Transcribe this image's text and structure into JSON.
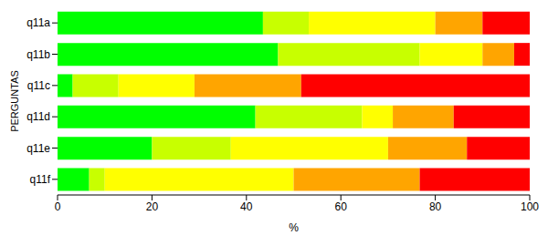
{
  "chart_data": {
    "type": "bar",
    "orientation": "horizontal",
    "stacked": true,
    "grid": false,
    "x_label": "%",
    "y_label": "PERGUNTAS",
    "categories": [
      "q11a",
      "q11b",
      "q11c",
      "q11d",
      "q11e",
      "q11f"
    ],
    "xlim": [
      0,
      100
    ],
    "xticks": [
      0,
      20,
      40,
      60,
      80,
      100
    ],
    "series": [
      {
        "color": "#00FF00",
        "values": [
          43.5,
          46.7,
          3.2,
          41.9,
          20,
          6.7
        ]
      },
      {
        "color": "#C8FF00",
        "values": [
          9.7,
          30,
          9.7,
          22.6,
          16.7,
          3.3
        ]
      },
      {
        "color": "#FFFF00",
        "values": [
          26.8,
          13.3,
          16.1,
          6.5,
          33.3,
          40
        ]
      },
      {
        "color": "#FFA500",
        "values": [
          10,
          6.7,
          22.6,
          12.9,
          16.7,
          26.7
        ]
      },
      {
        "color": "#FF0000",
        "values": [
          10,
          3.3,
          48.4,
          16.1,
          13.3,
          23.3
        ]
      }
    ]
  }
}
